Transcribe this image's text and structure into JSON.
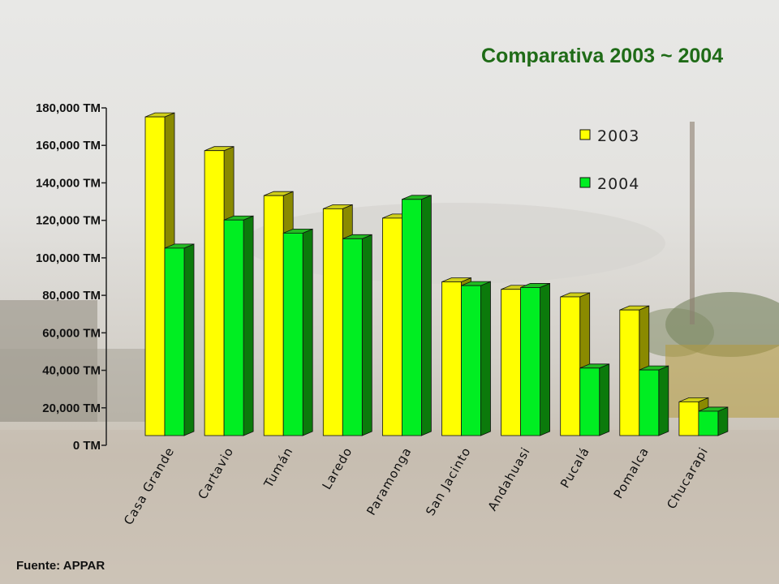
{
  "title": "Comparativa 2003 ~ 2004",
  "source": "Fuente: APPAR",
  "colors": {
    "s2003_front": "#ffff00",
    "s2003_side": "#8a8a00",
    "s2003_top": "#cfcf1a",
    "s2004_front": "#00ee22",
    "s2004_side": "#0b7a0b",
    "s2004_top": "#22bb22",
    "title": "#1f6b17"
  },
  "chart_data": {
    "type": "bar",
    "style": "3d-clustered-column",
    "categories": [
      "Casa Grande",
      "Cartavio",
      "Tumán",
      "Laredo",
      "Paramonga",
      "San Jacinto",
      "Andahuasi",
      "Pucalá",
      "Pomalca",
      "Chucarapi"
    ],
    "series": [
      {
        "name": "2003",
        "values": [
          170000,
          152000,
          128000,
          121000,
          116000,
          82000,
          78000,
          74000,
          67000,
          18000
        ]
      },
      {
        "name": "2004",
        "values": [
          100000,
          115000,
          108000,
          105000,
          126000,
          80000,
          79000,
          36000,
          35000,
          13000
        ]
      }
    ],
    "ylim": [
      0,
      180000
    ],
    "yticks": [
      0,
      20000,
      40000,
      60000,
      80000,
      100000,
      120000,
      140000,
      160000,
      180000
    ],
    "ytick_labels": [
      "0 TM",
      "20,000 TM",
      "40,000 TM",
      "60,000 TM",
      "80,000 TM",
      "100,000 TM",
      "120,000 TM",
      "140,000 TM",
      "160,000 TM",
      "180,000 TM"
    ],
    "legend": {
      "placement": "top-right",
      "entries": [
        "2003",
        "2004"
      ]
    },
    "grid": false,
    "xlabel": "",
    "ylabel": ""
  }
}
